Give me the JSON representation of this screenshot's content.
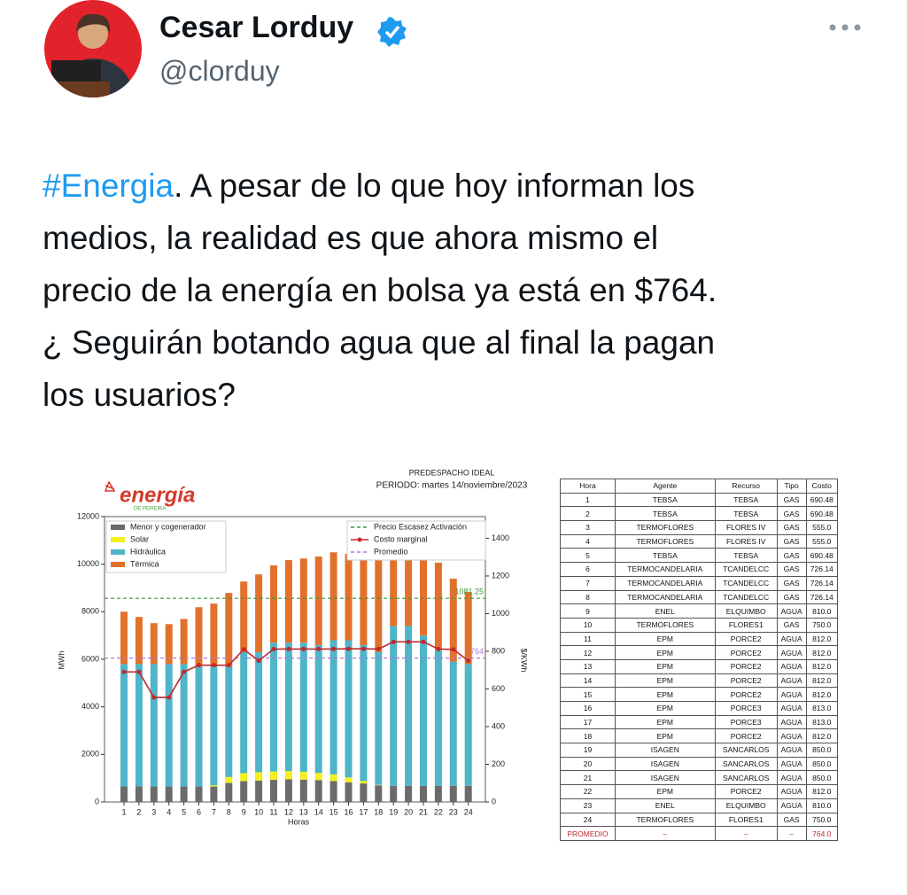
{
  "author": {
    "name": "Cesar Lorduy",
    "handle": "@clorduy"
  },
  "text": {
    "hashtag": "#Energia",
    "lines": [
      ". A pesar de lo que hoy informan los",
      "medios, la realidad es que ahora mismo el",
      "precio de la energía en bolsa ya está en $764.",
      "¿ Seguirán botando agua que al final la pagan",
      "los usuarios?"
    ]
  },
  "chart_data": {
    "type": "stacked-bar-line",
    "title": "PREDESPACHO IDEAL",
    "subtitle": "PERIODO: martes 14/noviembre/2023",
    "logo": {
      "name": "energía",
      "sub": "DE PEREIRA"
    },
    "x_label": "Horas",
    "y_label": "MWh",
    "y2_label": "$/KWh",
    "categories": [
      "1",
      "2",
      "3",
      "4",
      "5",
      "6",
      "7",
      "8",
      "9",
      "10",
      "11",
      "12",
      "13",
      "14",
      "15",
      "16",
      "17",
      "18",
      "19",
      "20",
      "21",
      "22",
      "23",
      "24"
    ],
    "ylim": [
      0,
      12000
    ],
    "yticks": [
      0,
      2000,
      4000,
      6000,
      8000,
      10000,
      12000
    ],
    "y2lim": [
      0,
      1515
    ],
    "y2ticks": [
      0,
      200,
      400,
      600,
      800,
      1000,
      1200,
      1400
    ],
    "series": [
      {
        "name": "Menor y cogenerador",
        "color": "#6b6b6b",
        "values": [
          650,
          650,
          650,
          650,
          650,
          650,
          650,
          800,
          880,
          900,
          930,
          950,
          940,
          920,
          880,
          830,
          780,
          700,
          680,
          680,
          680,
          680,
          680,
          680
        ]
      },
      {
        "name": "Solar",
        "color": "#f2f020",
        "values": [
          0,
          0,
          0,
          0,
          0,
          0,
          50,
          250,
          330,
          350,
          350,
          350,
          330,
          300,
          280,
          200,
          100,
          20,
          0,
          0,
          0,
          0,
          0,
          0
        ]
      },
      {
        "name": "Hidráulica",
        "color": "#4fb5c9",
        "values": [
          5150,
          5150,
          5150,
          5150,
          5150,
          5050,
          5000,
          4650,
          5090,
          5050,
          5420,
          5400,
          5430,
          5380,
          5640,
          5770,
          5720,
          5580,
          6720,
          6720,
          6320,
          5720,
          5220,
          5120
        ]
      },
      {
        "name": "Térmica",
        "color": "#e2712b",
        "values": [
          2200,
          1980,
          1720,
          1680,
          1900,
          2490,
          2640,
          3090,
          2970,
          3270,
          3250,
          3470,
          3540,
          3720,
          3700,
          3630,
          3720,
          3940,
          2840,
          2770,
          3170,
          3660,
          3490,
          3030
        ]
      },
      {
        "name": "Costo marginal",
        "type": "line",
        "axis": "y2",
        "color": "#c0282e",
        "values": [
          690.48,
          690.48,
          555,
          555,
          690.48,
          726.14,
          726.14,
          726.14,
          810,
          750,
          812,
          812,
          812,
          812,
          812,
          813,
          813,
          812,
          850,
          850,
          850,
          812,
          810,
          750
        ]
      }
    ],
    "reference_lines": [
      {
        "name": "Precio Escasez Activación",
        "axis": "y2",
        "color": "#3a9a3a",
        "value": 1081.25
      },
      {
        "name": "Promedio",
        "axis": "y2",
        "color": "#b07ad0",
        "value": 764
      }
    ]
  },
  "table": {
    "headers": [
      "Hora",
      "Agente",
      "Recurso",
      "Tipo",
      "Costo"
    ],
    "rows": [
      [
        "1",
        "TEBSA",
        "TEBSA",
        "GAS",
        "690.48"
      ],
      [
        "2",
        "TEBSA",
        "TEBSA",
        "GAS",
        "690.48"
      ],
      [
        "3",
        "TERMOFLORES",
        "FLORES IV",
        "GAS",
        "555.0"
      ],
      [
        "4",
        "TERMOFLORES",
        "FLORES IV",
        "GAS",
        "555.0"
      ],
      [
        "5",
        "TEBSA",
        "TEBSA",
        "GAS",
        "690.48"
      ],
      [
        "6",
        "TERMOCANDELARIA",
        "TCANDELCC",
        "GAS",
        "726.14"
      ],
      [
        "7",
        "TERMOCANDELARIA",
        "TCANDELCC",
        "GAS",
        "726.14"
      ],
      [
        "8",
        "TERMOCANDELARIA",
        "TCANDELCC",
        "GAS",
        "726.14"
      ],
      [
        "9",
        "ENEL",
        "ELQUIMBO",
        "AGUA",
        "810.0"
      ],
      [
        "10",
        "TERMOFLORES",
        "FLORES1",
        "GAS",
        "750.0"
      ],
      [
        "11",
        "EPM",
        "PORCE2",
        "AGUA",
        "812.0"
      ],
      [
        "12",
        "EPM",
        "PORCE2",
        "AGUA",
        "812.0"
      ],
      [
        "13",
        "EPM",
        "PORCE2",
        "AGUA",
        "812.0"
      ],
      [
        "14",
        "EPM",
        "PORCE2",
        "AGUA",
        "812.0"
      ],
      [
        "15",
        "EPM",
        "PORCE2",
        "AGUA",
        "812.0"
      ],
      [
        "16",
        "EPM",
        "PORCE3",
        "AGUA",
        "813.0"
      ],
      [
        "17",
        "EPM",
        "PORCE3",
        "AGUA",
        "813.0"
      ],
      [
        "18",
        "EPM",
        "PORCE2",
        "AGUA",
        "812.0"
      ],
      [
        "19",
        "ISAGEN",
        "SANCARLOS",
        "AGUA",
        "850.0"
      ],
      [
        "20",
        "ISAGEN",
        "SANCARLOS",
        "AGUA",
        "850.0"
      ],
      [
        "21",
        "ISAGEN",
        "SANCARLOS",
        "AGUA",
        "850.0"
      ],
      [
        "22",
        "EPM",
        "PORCE2",
        "AGUA",
        "812.0"
      ],
      [
        "23",
        "ENEL",
        "ELQUIMBO",
        "AGUA",
        "810.0"
      ],
      [
        "24",
        "TERMOFLORES",
        "FLORES1",
        "GAS",
        "750.0"
      ]
    ],
    "footer": [
      "PROMEDIO",
      "–",
      "–",
      "–",
      "764.0"
    ]
  }
}
